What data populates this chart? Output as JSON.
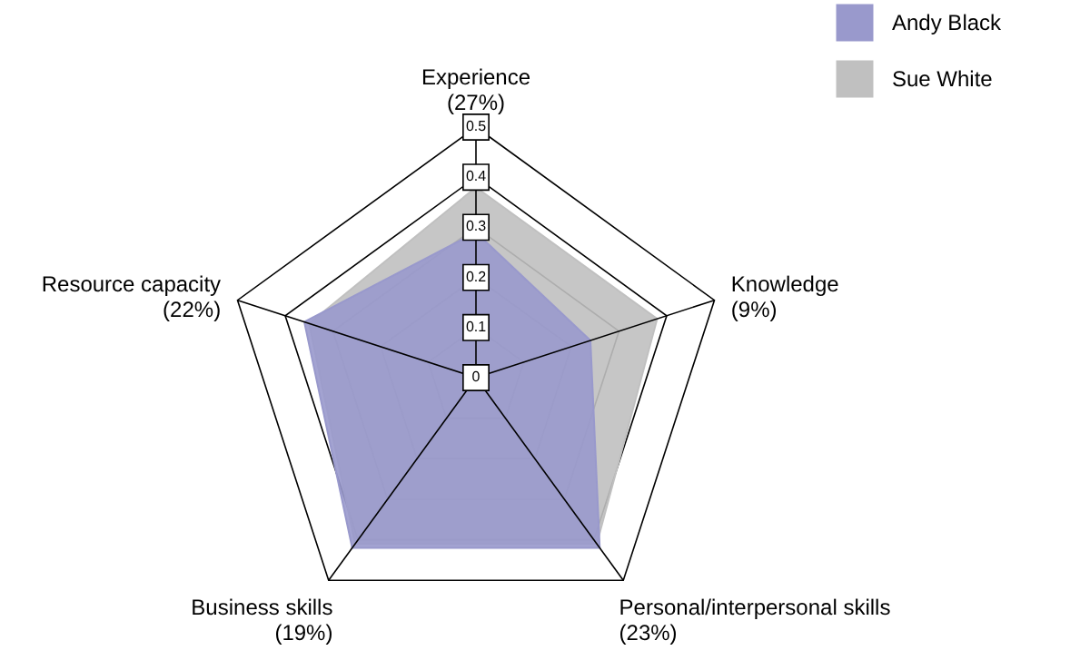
{
  "chart_data": {
    "type": "radar",
    "categories": [
      "Experience (27%)",
      "Knowledge (9%)",
      "Personal/interpersonal skills (23%)",
      "Business skills (19%)",
      "Resource capacity (22%)"
    ],
    "series": [
      {
        "name": "Andy Black",
        "color": "#9999cc",
        "values": [
          0.29,
          0.24,
          0.42,
          0.42,
          0.36
        ]
      },
      {
        "name": "Sue White",
        "color": "#c0c0c0",
        "values": [
          0.38,
          0.38,
          0.41,
          0.41,
          0.35
        ]
      }
    ],
    "ylim": [
      0,
      0.5
    ],
    "yticks": [
      0,
      0.1,
      0.2,
      0.3,
      0.4,
      0.5
    ],
    "grid": true,
    "legend": "top right"
  }
}
